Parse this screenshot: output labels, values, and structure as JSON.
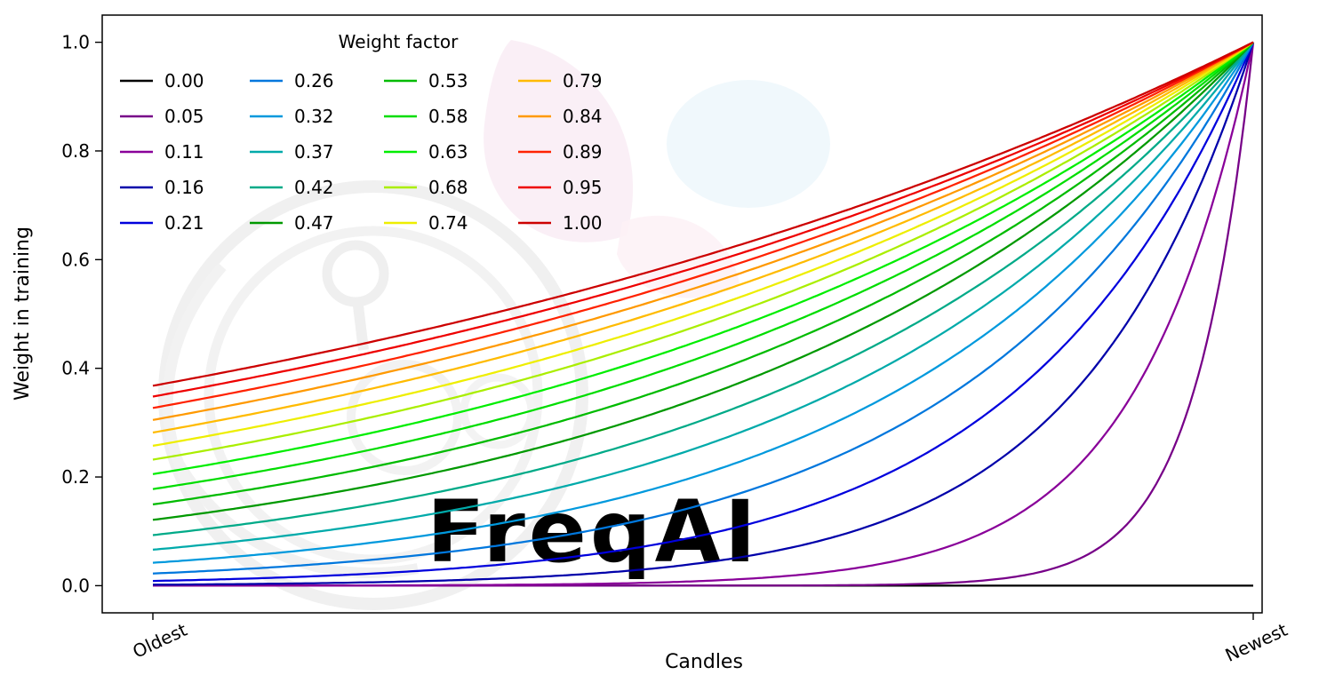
{
  "chart_data": {
    "type": "line",
    "title": "",
    "xlabel": "Candles",
    "ylabel": "Weight in training",
    "x_tick_labels": [
      "Oldest",
      "Newest"
    ],
    "x_tick_positions": [
      0,
      1
    ],
    "y_tick_labels": [
      "0.0",
      "0.2",
      "0.4",
      "0.6",
      "0.8",
      "1.0"
    ],
    "y_tick_values": [
      0.0,
      0.2,
      0.4,
      0.6,
      0.8,
      1.0
    ],
    "ylim": [
      -0.05,
      1.05
    ],
    "x_range": [
      0,
      1
    ],
    "grid": false,
    "legend_title": "Weight factor",
    "legend_position": "upper left",
    "legend_columns": 4,
    "legend_rows": 5,
    "legend_fill_order": "column-major",
    "formula": "weight(x) = exp(-(1 - x) / weight_factor) for x in [0,1] mapping Oldest to Newest; weight_factor 0 gives constant 0; all curves reach 1.0 at Newest",
    "background_color": "#ffffff",
    "watermark": "FreqAI",
    "series": [
      {
        "label": "0.00",
        "weight_factor": 0.0,
        "color": "#000000",
        "weight_at_oldest": 0.0,
        "weight_at_newest": 0.0
      },
      {
        "label": "0.05",
        "weight_factor": 0.0526,
        "color": "#770088",
        "weight_at_oldest": 0.0,
        "weight_at_newest": 1.0
      },
      {
        "label": "0.11",
        "weight_factor": 0.1053,
        "color": "#890099",
        "weight_at_oldest": 0.0001,
        "weight_at_newest": 1.0
      },
      {
        "label": "0.16",
        "weight_factor": 0.1579,
        "color": "#0000aa",
        "weight_at_oldest": 0.0018,
        "weight_at_newest": 1.0
      },
      {
        "label": "0.21",
        "weight_factor": 0.2105,
        "color": "#0000dd",
        "weight_at_oldest": 0.0087,
        "weight_at_newest": 1.0
      },
      {
        "label": "0.26",
        "weight_factor": 0.2632,
        "color": "#0077dd",
        "weight_at_oldest": 0.0224,
        "weight_at_newest": 1.0
      },
      {
        "label": "0.32",
        "weight_factor": 0.3158,
        "color": "#0099dd",
        "weight_at_oldest": 0.0421,
        "weight_at_newest": 1.0
      },
      {
        "label": "0.37",
        "weight_factor": 0.3684,
        "color": "#00aaaa",
        "weight_at_oldest": 0.0663,
        "weight_at_newest": 1.0
      },
      {
        "label": "0.42",
        "weight_factor": 0.4211,
        "color": "#00aa88",
        "weight_at_oldest": 0.093,
        "weight_at_newest": 1.0
      },
      {
        "label": "0.47",
        "weight_factor": 0.4737,
        "color": "#009900",
        "weight_at_oldest": 0.1211,
        "weight_at_newest": 1.0
      },
      {
        "label": "0.53",
        "weight_factor": 0.5263,
        "color": "#00bb00",
        "weight_at_oldest": 0.1496,
        "weight_at_newest": 1.0
      },
      {
        "label": "0.58",
        "weight_factor": 0.5789,
        "color": "#00dd00",
        "weight_at_oldest": 0.1778,
        "weight_at_newest": 1.0
      },
      {
        "label": "0.63",
        "weight_factor": 0.6316,
        "color": "#00ee00",
        "weight_at_oldest": 0.2053,
        "weight_at_newest": 1.0
      },
      {
        "label": "0.68",
        "weight_factor": 0.6842,
        "color": "#aaee00",
        "weight_at_oldest": 0.2319,
        "weight_at_newest": 1.0
      },
      {
        "label": "0.74",
        "weight_factor": 0.7368,
        "color": "#eeee00",
        "weight_at_oldest": 0.2574,
        "weight_at_newest": 1.0
      },
      {
        "label": "0.79",
        "weight_factor": 0.7895,
        "color": "#ffbb00",
        "weight_at_oldest": 0.2818,
        "weight_at_newest": 1.0
      },
      {
        "label": "0.84",
        "weight_factor": 0.8421,
        "color": "#ff9900",
        "weight_at_oldest": 0.305,
        "weight_at_newest": 1.0
      },
      {
        "label": "0.89",
        "weight_factor": 0.8947,
        "color": "#ff2200",
        "weight_at_oldest": 0.3271,
        "weight_at_newest": 1.0
      },
      {
        "label": "0.95",
        "weight_factor": 0.9474,
        "color": "#ee0000",
        "weight_at_oldest": 0.348,
        "weight_at_newest": 1.0
      },
      {
        "label": "1.00",
        "weight_factor": 1.0,
        "color": "#cc0000",
        "weight_at_oldest": 0.3679,
        "weight_at_newest": 1.0
      }
    ]
  }
}
